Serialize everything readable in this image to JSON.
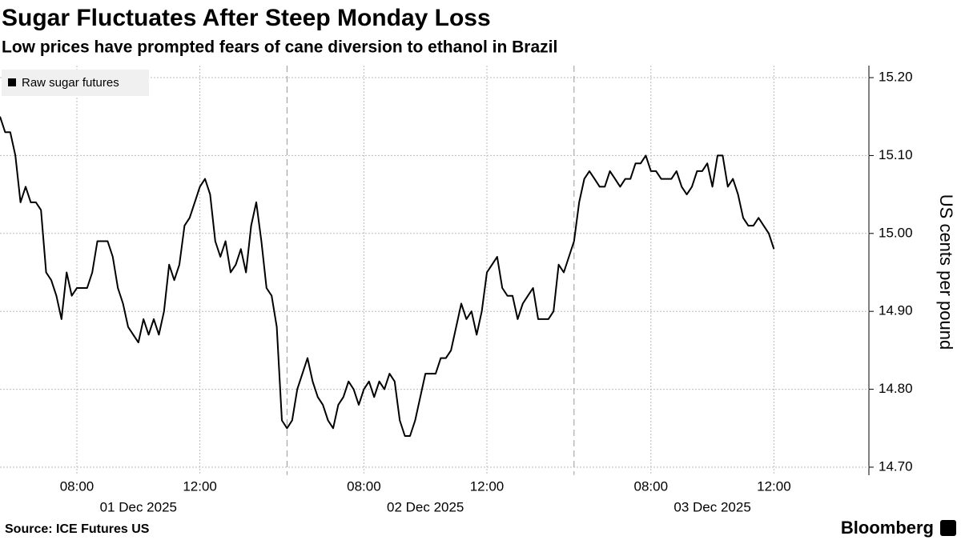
{
  "chart_data": {
    "type": "line",
    "title": "Sugar Fluctuates After Steep Monday Loss",
    "subtitle": "Low prices have prompted fears of cane diversion to ethanol in Brazil",
    "y_label": "US cents per pound",
    "source": "Source: ICE Futures US",
    "brand": "Bloomberg",
    "sessions": [
      "01 Dec 2025",
      "02 Dec 2025",
      "03 Dec 2025"
    ],
    "categories": [
      [
        null,
        null,
        null,
        null,
        null,
        null,
        null,
        null,
        null,
        null,
        null,
        null,
        null,
        null,
        null,
        "08:00",
        null,
        null,
        null,
        null,
        null,
        null,
        null,
        null,
        null,
        null,
        null,
        null,
        null,
        null,
        null,
        null,
        null,
        null,
        null,
        null,
        null,
        null,
        null,
        "12:00",
        null,
        null,
        null,
        null,
        null,
        null,
        null,
        null,
        null,
        null,
        null,
        null,
        null,
        null,
        null,
        null
      ],
      [
        null,
        null,
        null,
        null,
        null,
        null,
        null,
        null,
        null,
        null,
        null,
        null,
        null,
        null,
        null,
        "08:00",
        null,
        null,
        null,
        null,
        null,
        null,
        null,
        null,
        null,
        null,
        null,
        null,
        null,
        null,
        null,
        null,
        null,
        null,
        null,
        null,
        null,
        null,
        null,
        "12:00",
        null,
        null,
        null,
        null,
        null,
        null,
        null,
        null,
        null,
        null,
        null,
        null,
        null,
        null,
        null,
        null
      ],
      [
        null,
        null,
        null,
        null,
        null,
        null,
        null,
        null,
        null,
        null,
        null,
        null,
        null,
        null,
        null,
        "08:00",
        null,
        null,
        null,
        null,
        null,
        null,
        null,
        null,
        null,
        null,
        null,
        null,
        null,
        null,
        null,
        null,
        null,
        null,
        null,
        null,
        null,
        null,
        null,
        "12:00"
      ]
    ],
    "series": [
      {
        "name": "Raw sugar futures",
        "color": "#000000",
        "values": [
          [
            15.15,
            15.13,
            15.13,
            15.1,
            15.04,
            15.06,
            15.04,
            15.04,
            15.03,
            14.95,
            14.94,
            14.92,
            14.89,
            14.95,
            14.92,
            14.93,
            14.93,
            14.93,
            14.95,
            14.99,
            14.99,
            14.99,
            14.97,
            14.93,
            14.91,
            14.88,
            14.87,
            14.86,
            14.89,
            14.87,
            14.89,
            14.87,
            14.9,
            14.96,
            14.94,
            14.96,
            15.01,
            15.02,
            15.04,
            15.06,
            15.07,
            15.05,
            14.99,
            14.97,
            14.99,
            14.95,
            14.96,
            14.98,
            14.95,
            15.01,
            15.04,
            14.99,
            14.93,
            14.92,
            14.88,
            14.76
          ],
          [
            14.75,
            14.76,
            14.8,
            14.82,
            14.84,
            14.81,
            14.79,
            14.78,
            14.76,
            14.75,
            14.78,
            14.79,
            14.81,
            14.8,
            14.78,
            14.8,
            14.81,
            14.79,
            14.81,
            14.8,
            14.82,
            14.81,
            14.76,
            14.74,
            14.74,
            14.76,
            14.79,
            14.82,
            14.82,
            14.82,
            14.84,
            14.84,
            14.85,
            14.88,
            14.91,
            14.89,
            14.9,
            14.87,
            14.9,
            14.95,
            14.96,
            14.97,
            14.93,
            14.92,
            14.92,
            14.89,
            14.91,
            14.92,
            14.93,
            14.89,
            14.89,
            14.89,
            14.9,
            14.96,
            14.95,
            14.97
          ],
          [
            14.99,
            15.04,
            15.07,
            15.08,
            15.07,
            15.06,
            15.06,
            15.08,
            15.07,
            15.06,
            15.07,
            15.07,
            15.09,
            15.09,
            15.1,
            15.08,
            15.08,
            15.07,
            15.07,
            15.07,
            15.08,
            15.06,
            15.05,
            15.06,
            15.08,
            15.08,
            15.09,
            15.06,
            15.1,
            15.1,
            15.06,
            15.07,
            15.05,
            15.02,
            15.01,
            15.01,
            15.02,
            15.01,
            15.0,
            14.98
          ]
        ]
      }
    ],
    "ylim": [
      14.69,
      15.21
    ],
    "yticks": [
      {
        "value": 14.7,
        "label": "14.70"
      },
      {
        "value": 14.8,
        "label": "14.80"
      },
      {
        "value": 14.9,
        "label": "14.90"
      },
      {
        "value": 15.0,
        "label": "15.00"
      },
      {
        "value": 15.1,
        "label": "15.10"
      },
      {
        "value": 15.2,
        "label": "15.20"
      }
    ],
    "grid": true,
    "legend": "top-left"
  }
}
